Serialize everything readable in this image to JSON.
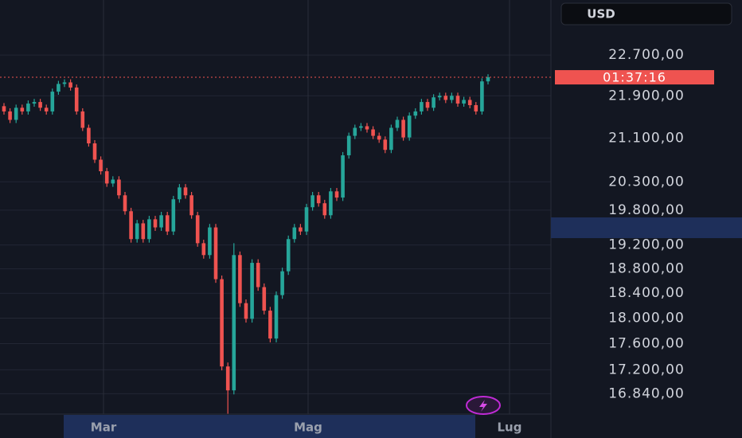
{
  "chart_data": {
    "type": "candlestick",
    "currency": "USD",
    "countdown": "01:37:16",
    "log_scale": true,
    "grid": true,
    "up_color": "#26a69a",
    "down_color": "#ef5350",
    "x_labels": [
      "Mar",
      "Mag",
      "Lug"
    ],
    "ylim": [
      16540,
      23830
    ],
    "yticks": [
      {
        "value": 22700,
        "label": "22.700,00"
      },
      {
        "value": 21900,
        "label": "21.900,00"
      },
      {
        "value": 21100,
        "label": "21.100,00"
      },
      {
        "value": 20300,
        "label": "20.300,00"
      },
      {
        "value": 19800,
        "label": "19.800,00"
      },
      {
        "value": 19200,
        "label": "19.200,00"
      },
      {
        "value": 18800,
        "label": "18.800,00"
      },
      {
        "value": 18400,
        "label": "18.400,00"
      },
      {
        "value": 18000,
        "label": "18.000,00"
      },
      {
        "value": 17600,
        "label": "17.600,00"
      },
      {
        "value": 17200,
        "label": "17.200,00"
      },
      {
        "value": 16840,
        "label": "16.840,00"
      }
    ],
    "ohlc": [
      [
        21700,
        21760,
        21540,
        21600
      ],
      [
        21600,
        21660,
        21380,
        21440
      ],
      [
        21440,
        21730,
        21380,
        21670
      ],
      [
        21670,
        21730,
        21540,
        21600
      ],
      [
        21600,
        21810,
        21540,
        21750
      ],
      [
        21750,
        21840,
        21690,
        21780
      ],
      [
        21780,
        21840,
        21610,
        21670
      ],
      [
        21670,
        21730,
        21540,
        21600
      ],
      [
        21600,
        22040,
        21540,
        21980
      ],
      [
        21980,
        22190,
        21920,
        22130
      ],
      [
        22130,
        22220,
        22070,
        22160
      ],
      [
        22160,
        22220,
        22000,
        22060
      ],
      [
        22060,
        22120,
        21540,
        21600
      ],
      [
        21600,
        21660,
        21230,
        21290
      ],
      [
        21290,
        21350,
        20940,
        21000
      ],
      [
        21000,
        21060,
        20640,
        20700
      ],
      [
        20700,
        20760,
        20430,
        20490
      ],
      [
        20490,
        20550,
        20210,
        20270
      ],
      [
        20270,
        20400,
        20210,
        20340
      ],
      [
        20340,
        20400,
        20000,
        20060
      ],
      [
        20060,
        20120,
        19720,
        19780
      ],
      [
        19780,
        19840,
        19240,
        19300
      ],
      [
        19300,
        19630,
        19240,
        19570
      ],
      [
        19570,
        19630,
        19240,
        19300
      ],
      [
        19300,
        19700,
        19240,
        19640
      ],
      [
        19640,
        19700,
        19440,
        19500
      ],
      [
        19500,
        19770,
        19440,
        19710
      ],
      [
        19710,
        19770,
        19370,
        19430
      ],
      [
        19430,
        20050,
        19370,
        19990
      ],
      [
        19990,
        20260,
        19930,
        20200
      ],
      [
        20200,
        20260,
        20000,
        20060
      ],
      [
        20060,
        20120,
        19650,
        19710
      ],
      [
        19710,
        19770,
        19170,
        19230
      ],
      [
        19230,
        19290,
        18970,
        19030
      ],
      [
        19030,
        19560,
        18970,
        19500
      ],
      [
        19500,
        19560,
        18570,
        18630
      ],
      [
        18630,
        18690,
        17190,
        17250
      ],
      [
        17250,
        17310,
        16540,
        16890
      ],
      [
        16890,
        19230,
        16830,
        19030
      ],
      [
        19030,
        19090,
        18180,
        18240
      ],
      [
        18240,
        18300,
        17930,
        17990
      ],
      [
        17990,
        18960,
        17930,
        18900
      ],
      [
        18900,
        18960,
        18440,
        18500
      ],
      [
        18500,
        18560,
        18060,
        18120
      ],
      [
        18120,
        18180,
        17620,
        17680
      ],
      [
        17680,
        18430,
        17620,
        18370
      ],
      [
        18370,
        18820,
        18310,
        18760
      ],
      [
        18760,
        19360,
        18700,
        19300
      ],
      [
        19300,
        19560,
        19240,
        19500
      ],
      [
        19500,
        19560,
        19370,
        19430
      ],
      [
        19430,
        19910,
        19370,
        19850
      ],
      [
        19850,
        20120,
        19790,
        20060
      ],
      [
        20060,
        20120,
        19860,
        19920
      ],
      [
        19920,
        19980,
        19650,
        19710
      ],
      [
        19710,
        20190,
        19650,
        20130
      ],
      [
        20130,
        20190,
        19960,
        20020
      ],
      [
        20020,
        20840,
        19960,
        20780
      ],
      [
        20780,
        21200,
        20720,
        21140
      ],
      [
        21140,
        21350,
        21080,
        21290
      ],
      [
        21290,
        21380,
        21230,
        21320
      ],
      [
        21320,
        21380,
        21200,
        21260
      ],
      [
        21260,
        21320,
        21080,
        21140
      ],
      [
        21140,
        21200,
        21010,
        21070
      ],
      [
        21070,
        21130,
        20820,
        20880
      ],
      [
        20880,
        21350,
        20820,
        21290
      ],
      [
        21290,
        21500,
        21230,
        21440
      ],
      [
        21440,
        21500,
        21050,
        21110
      ],
      [
        21110,
        21580,
        21050,
        21520
      ],
      [
        21520,
        21660,
        21460,
        21600
      ],
      [
        21600,
        21840,
        21540,
        21780
      ],
      [
        21780,
        21840,
        21610,
        21670
      ],
      [
        21670,
        21930,
        21610,
        21870
      ],
      [
        21870,
        21960,
        21810,
        21900
      ],
      [
        21900,
        21960,
        21760,
        21820
      ],
      [
        21820,
        21960,
        21760,
        21900
      ],
      [
        21900,
        21960,
        21690,
        21750
      ],
      [
        21750,
        21880,
        21690,
        21820
      ],
      [
        21820,
        21880,
        21660,
        21720
      ],
      [
        21720,
        21780,
        21540,
        21600
      ],
      [
        21600,
        22240,
        21540,
        22180
      ],
      [
        22180,
        22320,
        22120,
        22260
      ]
    ]
  }
}
